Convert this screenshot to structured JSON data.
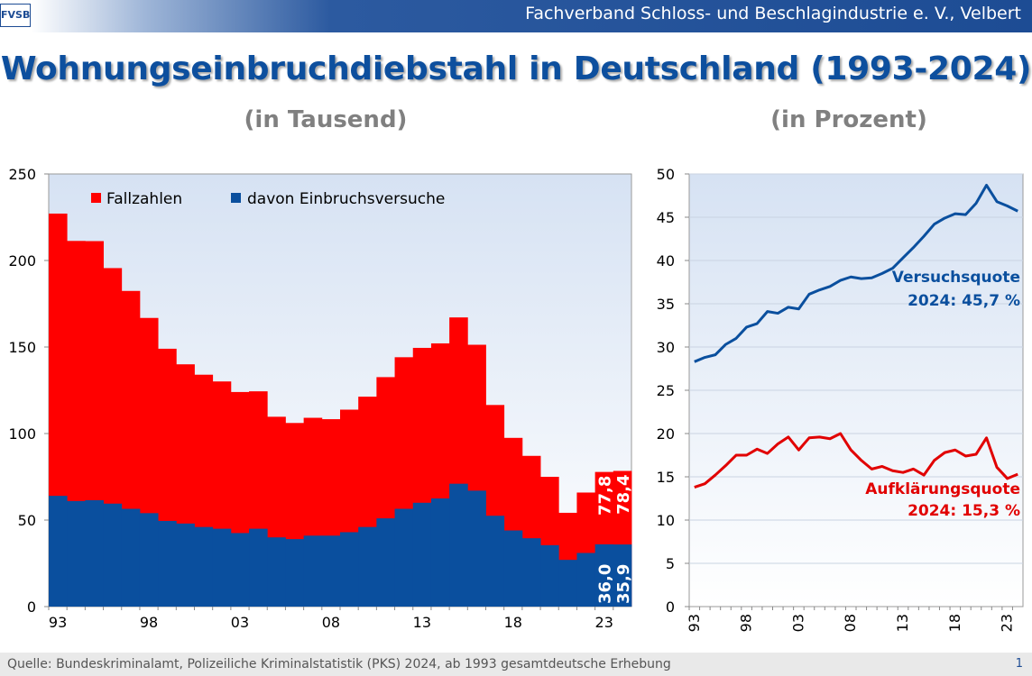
{
  "header": {
    "logo_text": "FVSB",
    "org_name": "Fachverband Schloss- und Beschlagindustrie e. V., Velbert"
  },
  "title": "Wohnungseinbruchdiebstahl in Deutschland (1993-2024)",
  "subtitle_left": "(in Tausend)",
  "subtitle_right": "(in Prozent)",
  "footer": {
    "source": "Quelle:  Bundeskriminalamt, Polizeiliche Kriminalstatistik (PKS) 2024, ab 1993 gesamtdeutsche Erhebung",
    "page": "1"
  },
  "colors": {
    "red": "#ff0000",
    "blue": "#0a4f9e",
    "plot_bg_top": "#dfe8f5",
    "plot_bg_bottom": "#ffffff"
  },
  "chart_data": [
    {
      "type": "bar",
      "stacked_overlay": true,
      "years": [
        1993,
        1994,
        1995,
        1996,
        1997,
        1998,
        1999,
        2000,
        2001,
        2002,
        2003,
        2004,
        2005,
        2006,
        2007,
        2008,
        2009,
        2010,
        2011,
        2012,
        2013,
        2014,
        2015,
        2016,
        2017,
        2018,
        2019,
        2020,
        2021,
        2022,
        2023,
        2024
      ],
      "x_tick_labels": [
        "93",
        "98",
        "03",
        "08",
        "13",
        "18",
        "23"
      ],
      "x_tick_years": [
        1993,
        1998,
        2003,
        2008,
        2013,
        2018,
        2023
      ],
      "ylim": [
        0,
        250
      ],
      "y_ticks": [
        0,
        50,
        100,
        150,
        200,
        250
      ],
      "series": [
        {
          "name": "Fallzahlen",
          "color": "#ff0000",
          "values": [
            227.1,
            211.3,
            211.2,
            195.6,
            182.4,
            166.8,
            149.0,
            140.0,
            134.0,
            130.1,
            124.0,
            124.4,
            109.7,
            106.1,
            109.1,
            108.3,
            113.8,
            121.3,
            132.6,
            144.1,
            149.5,
            152.1,
            167.1,
            151.3,
            116.5,
            97.5,
            87.1,
            75.0,
            54.2,
            65.9,
            77.8,
            78.4
          ]
        },
        {
          "name": "davon Einbruchsversuche",
          "color": "#0a4f9e",
          "values": [
            64.0,
            61.0,
            61.5,
            59.5,
            56.5,
            54.0,
            49.5,
            48.0,
            46.0,
            45.0,
            42.5,
            45.0,
            40.0,
            39.0,
            41.0,
            41.0,
            43.0,
            46.0,
            51.0,
            56.5,
            60.0,
            62.5,
            71.0,
            67.0,
            52.5,
            44.0,
            39.5,
            35.5,
            27.0,
            31.0,
            36.0,
            35.9
          ]
        }
      ],
      "data_labels": {
        "fall_2023": "77,8",
        "fall_2024": "78,4",
        "versuch_2023": "36,0",
        "versuch_2024": "35,9"
      }
    },
    {
      "type": "line",
      "years": [
        1993,
        1994,
        1995,
        1996,
        1997,
        1998,
        1999,
        2000,
        2001,
        2002,
        2003,
        2004,
        2005,
        2006,
        2007,
        2008,
        2009,
        2010,
        2011,
        2012,
        2013,
        2014,
        2015,
        2016,
        2017,
        2018,
        2019,
        2020,
        2021,
        2022,
        2023,
        2024
      ],
      "x_tick_labels": [
        "93",
        "98",
        "03",
        "08",
        "13",
        "18",
        "23"
      ],
      "x_tick_years": [
        1993,
        1998,
        2003,
        2008,
        2013,
        2018,
        2023
      ],
      "ylim": [
        0,
        50
      ],
      "y_ticks": [
        0,
        5,
        10,
        15,
        20,
        25,
        30,
        35,
        40,
        45,
        50
      ],
      "series": [
        {
          "name": "Versuchsquote",
          "color": "#0a4f9e",
          "values": [
            28.3,
            28.8,
            29.1,
            30.3,
            31.0,
            32.3,
            32.7,
            34.1,
            33.9,
            34.6,
            34.4,
            36.1,
            36.6,
            37.0,
            37.7,
            38.1,
            37.9,
            38.0,
            38.5,
            39.1,
            40.3,
            41.5,
            42.8,
            44.2,
            44.9,
            45.4,
            45.3,
            46.6,
            48.7,
            46.8,
            46.3,
            45.7
          ],
          "label_lines": [
            "Versuchsquote",
            "2024:  45,7 %"
          ]
        },
        {
          "name": "Aufklärungsquote",
          "color": "#e10000",
          "values": [
            13.8,
            14.2,
            15.2,
            16.3,
            17.5,
            17.5,
            18.2,
            17.7,
            18.8,
            19.6,
            18.1,
            19.5,
            19.6,
            19.4,
            20.0,
            18.1,
            16.9,
            15.9,
            16.2,
            15.7,
            15.5,
            15.9,
            15.2,
            16.9,
            17.8,
            18.1,
            17.4,
            17.6,
            19.5,
            16.1,
            14.8,
            15.3
          ],
          "label_lines": [
            "Aufklärungsquote",
            "2024:  15,3 %"
          ]
        }
      ]
    }
  ]
}
